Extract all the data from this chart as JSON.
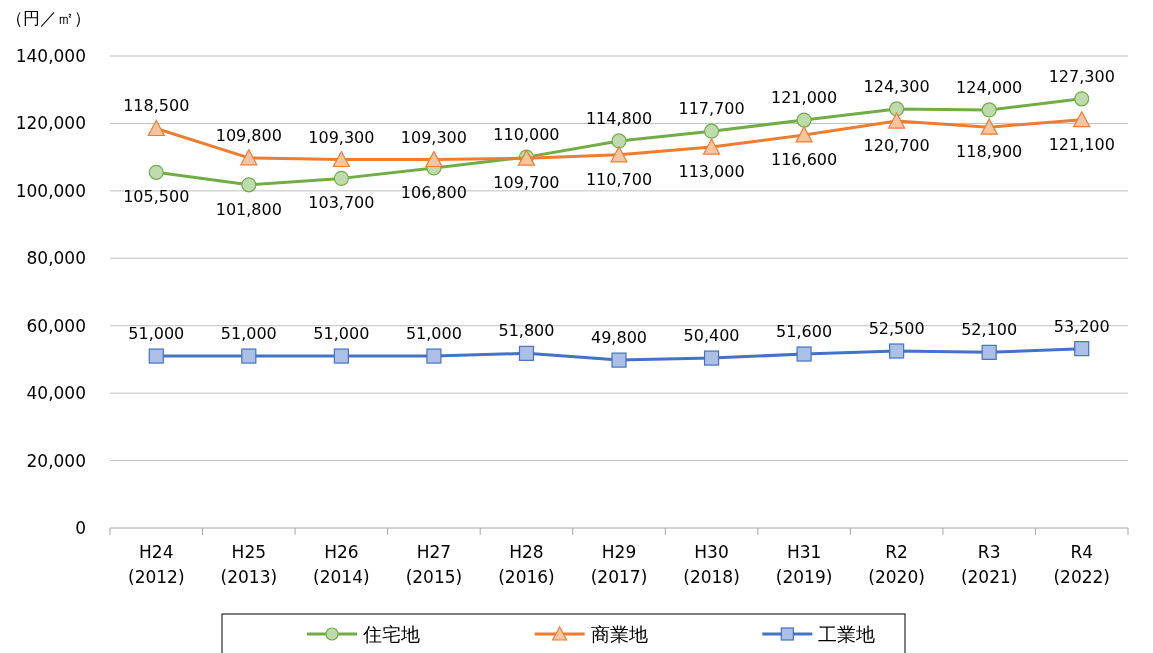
{
  "chart_data": {
    "type": "line",
    "ylabel": "（円／㎡）",
    "categories": [
      "H24\n(2012)",
      "H25\n(2013)",
      "H26\n(2014)",
      "H27\n(2015)",
      "H28\n(2016)",
      "H29\n(2017)",
      "H30\n(2018)",
      "H31\n(2019)",
      "R2\n(2020)",
      "R3\n(2021)",
      "R4\n(2022)"
    ],
    "series": [
      {
        "name": "住宅地",
        "color": "#70ad47",
        "marker": "circle",
        "values": [
          105500,
          101800,
          103700,
          106800,
          110000,
          114800,
          117700,
          121000,
          124300,
          124000,
          127300
        ],
        "value_labels": [
          "105,500",
          "101,800",
          "103,700",
          "106,800",
          "110,000",
          "114,800",
          "117,700",
          "121,000",
          "124,300",
          "124,000",
          "127,300"
        ]
      },
      {
        "name": "商業地",
        "color": "#ed7d31",
        "marker": "triangle",
        "values": [
          118500,
          109800,
          109300,
          109300,
          109700,
          110700,
          113000,
          116600,
          120700,
          118900,
          121100
        ],
        "value_labels": [
          "118,500",
          "109,800",
          "109,300",
          "109,300",
          "109,700",
          "110,700",
          "113,000",
          "116,600",
          "120,700",
          "118,900",
          "121,100"
        ]
      },
      {
        "name": "工業地",
        "color": "#4472c4",
        "marker": "square",
        "values": [
          51000,
          51000,
          51000,
          51000,
          51800,
          49800,
          50400,
          51600,
          52500,
          52100,
          53200
        ],
        "value_labels": [
          "51,000",
          "51,000",
          "51,000",
          "51,000",
          "51,800",
          "49,800",
          "50,400",
          "51,600",
          "52,500",
          "52,100",
          "53,200"
        ]
      }
    ],
    "ylim": [
      0,
      140000
    ],
    "yticks": [
      0,
      {
        "value": 20000,
        "label": "20,000"
      },
      {
        "value": 40000,
        "label": "40,000"
      },
      {
        "value": 60000,
        "label": "60,000"
      },
      {
        "value": 80000,
        "label": "80,000"
      },
      {
        "value": 100000,
        "label": "100,000"
      },
      {
        "value": 120000,
        "label": "120,000"
      },
      {
        "value": 140000,
        "label": "140,000"
      }
    ],
    "grid": "y",
    "legend": "bottom"
  }
}
